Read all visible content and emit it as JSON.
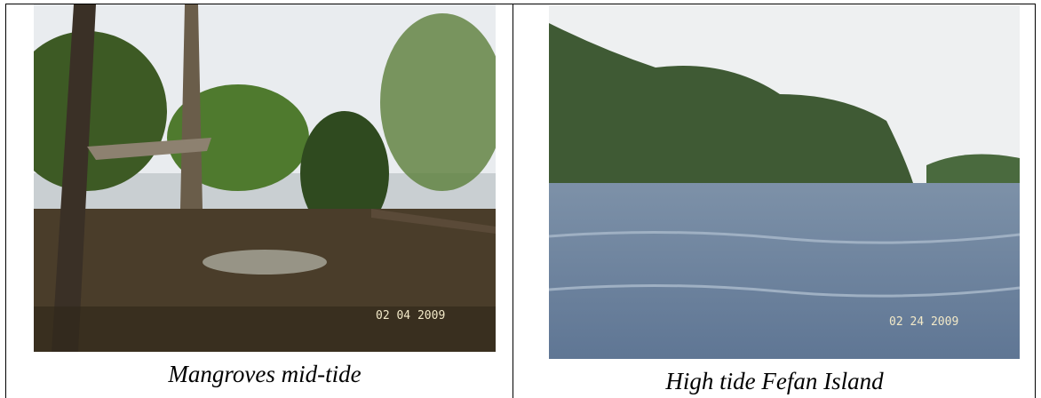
{
  "table": {
    "rows": [
      [
        {
          "photo_stamp": "02 04 2009",
          "caption": "Mangroves mid-tide"
        },
        {
          "photo_stamp": "02 24 2009",
          "caption": "High tide Fefan Island"
        }
      ]
    ]
  }
}
